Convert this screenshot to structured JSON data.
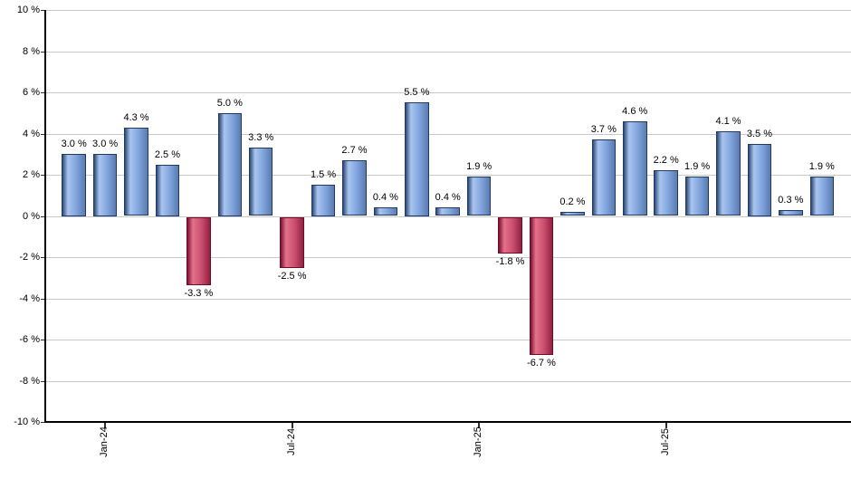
{
  "chart_data": {
    "type": "bar",
    "title": "",
    "xlabel": "",
    "ylabel": "",
    "unit": "%",
    "ylim": [
      -10,
      10
    ],
    "y_tick_step": 2,
    "grid": true,
    "legend": "none",
    "bars": [
      {
        "label": "3.0 %",
        "value": 3.0
      },
      {
        "label": "3.0 %",
        "value": 3.0
      },
      {
        "label": "4.3 %",
        "value": 4.3
      },
      {
        "label": "2.5 %",
        "value": 2.5
      },
      {
        "label": "-3.3 %",
        "value": -3.3
      },
      {
        "label": "5.0 %",
        "value": 5.0
      },
      {
        "label": "3.3 %",
        "value": 3.3
      },
      {
        "label": "-2.5 %",
        "value": -2.5
      },
      {
        "label": "1.5 %",
        "value": 1.5
      },
      {
        "label": "2.7 %",
        "value": 2.7
      },
      {
        "label": "0.4 %",
        "value": 0.4
      },
      {
        "label": "5.5 %",
        "value": 5.5
      },
      {
        "label": "0.4 %",
        "value": 0.4
      },
      {
        "label": "1.9 %",
        "value": 1.9
      },
      {
        "label": "-1.8 %",
        "value": -1.8
      },
      {
        "label": "-6.7 %",
        "value": -6.7
      },
      {
        "label": "0.2 %",
        "value": 0.2
      },
      {
        "label": "3.7 %",
        "value": 3.7
      },
      {
        "label": "4.6 %",
        "value": 4.6
      },
      {
        "label": "2.2 %",
        "value": 2.2
      },
      {
        "label": "1.9 %",
        "value": 1.9
      },
      {
        "label": "4.1 %",
        "value": 4.1
      },
      {
        "label": "3.5 %",
        "value": 3.5
      },
      {
        "label": "0.3 %",
        "value": 0.3
      },
      {
        "label": "1.9 %",
        "value": 1.9
      }
    ],
    "x_ticks": [
      {
        "bar_index": 1,
        "label": "Jan-24"
      },
      {
        "bar_index": 7,
        "label": "Jul-24"
      },
      {
        "bar_index": 13,
        "label": "Jan-25"
      },
      {
        "bar_index": 19,
        "label": "Jul-25"
      }
    ],
    "y_ticks": [
      {
        "value": 10,
        "label": "10 %"
      },
      {
        "value": 8,
        "label": "8 %"
      },
      {
        "value": 6,
        "label": "6 %"
      },
      {
        "value": 4,
        "label": "4 %"
      },
      {
        "value": 2,
        "label": "2 %"
      },
      {
        "value": 0,
        "label": "0 %"
      },
      {
        "value": -2,
        "label": "-2 %"
      },
      {
        "value": -4,
        "label": "-4 %"
      },
      {
        "value": -6,
        "label": "-6 %"
      },
      {
        "value": -8,
        "label": "-8 %"
      },
      {
        "value": -10,
        "label": "-10 %"
      }
    ],
    "colors": {
      "positive_dark": "#2e4b77",
      "positive_light": "#a9c5ef",
      "positive_mid": "#7fa3dc",
      "positive_edge": "#5b7bae",
      "positive_border": "#1f3a66",
      "negative_dark": "#7c1030",
      "negative_light": "#e5718a",
      "negative_mid": "#c94f6f",
      "negative_edge": "#93203f",
      "negative_border": "#6b0d28",
      "gridline": "#c8c8c8",
      "axis": "#000000",
      "label_text": "#000000"
    }
  }
}
